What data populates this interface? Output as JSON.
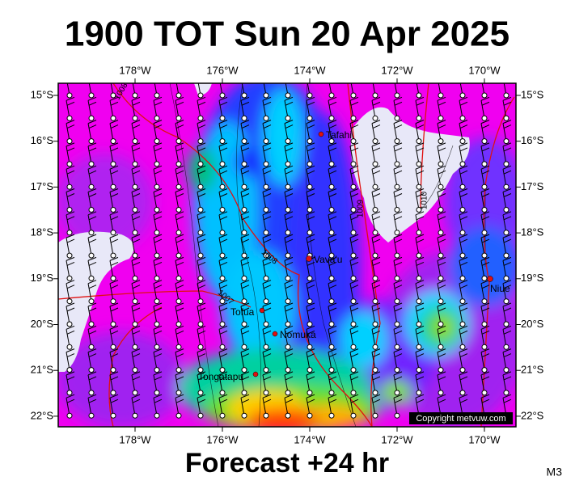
{
  "title": "1900 TOT Sun 20 Apr 2025",
  "subtitle": "Forecast +24 hr",
  "model": "M3",
  "lon_labels": [
    "178°W",
    "176°W",
    "174°W",
    "172°W",
    "170°W"
  ],
  "lat_labels": [
    "15°S",
    "16°S",
    "17°S",
    "18°S",
    "19°S",
    "20°S",
    "21°S",
    "22°S"
  ],
  "places": [
    "Tafahi",
    "Vava'u",
    "Niue",
    "Tofua",
    "Nomuka",
    "Tongatapu"
  ],
  "isobar_labels": [
    "1008",
    "1009",
    "1010",
    "1008",
    "1007"
  ],
  "copyright": "Copyright metvuw.com"
}
